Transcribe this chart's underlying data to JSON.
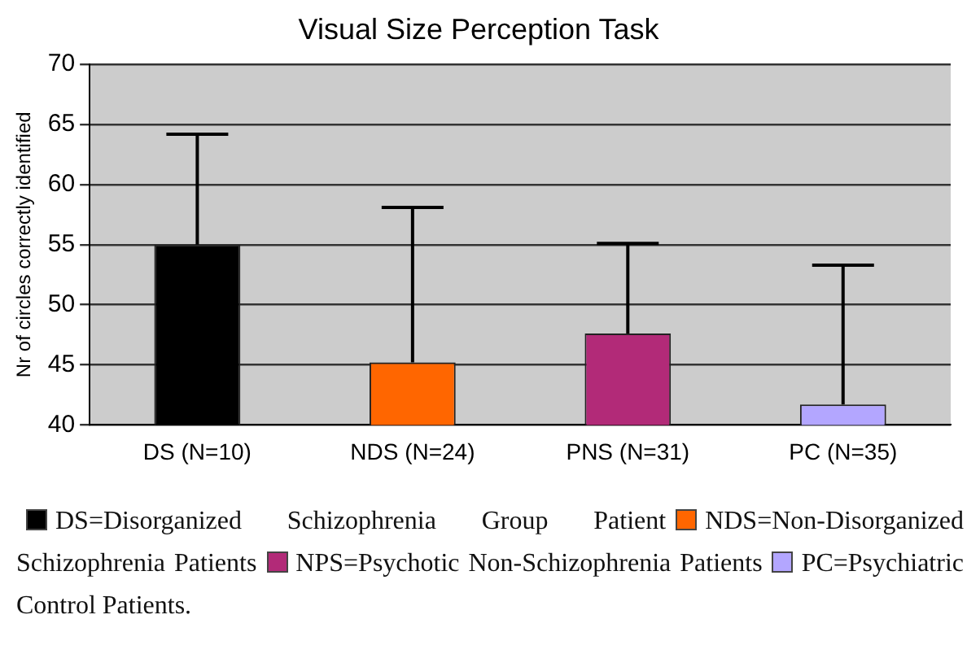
{
  "chart_data": {
    "type": "bar",
    "title": "Visual Size Perception Task",
    "ylabel": "Nr of circles correctly identified",
    "categories": [
      "DS (N=10)",
      "NDS (N=24)",
      "PNS (N=31)",
      "PC (N=35)"
    ],
    "values": [
      55,
      45.2,
      47.6,
      41.7
    ],
    "colors": [
      "#000000",
      "#ff6600",
      "#b22a78",
      "#b3a6ff"
    ],
    "errors": [
      [
        55,
        64.2
      ],
      [
        45.2,
        58.1
      ],
      [
        47.6,
        55.1
      ],
      [
        41.7,
        53.3
      ]
    ],
    "ylim": [
      40,
      70
    ],
    "yticks": [
      40,
      45,
      50,
      55,
      60,
      65,
      70
    ],
    "grid": "y",
    "legend": false,
    "annotations": [
      "DS=Disorganized Schizophrenia Group Patient",
      "NDS=Non-Disorganized Schizophrenia Patients",
      "NPS=Psychotic Non-Schizophrenia Patients",
      "PC=Psychiatric Control Patients."
    ]
  }
}
